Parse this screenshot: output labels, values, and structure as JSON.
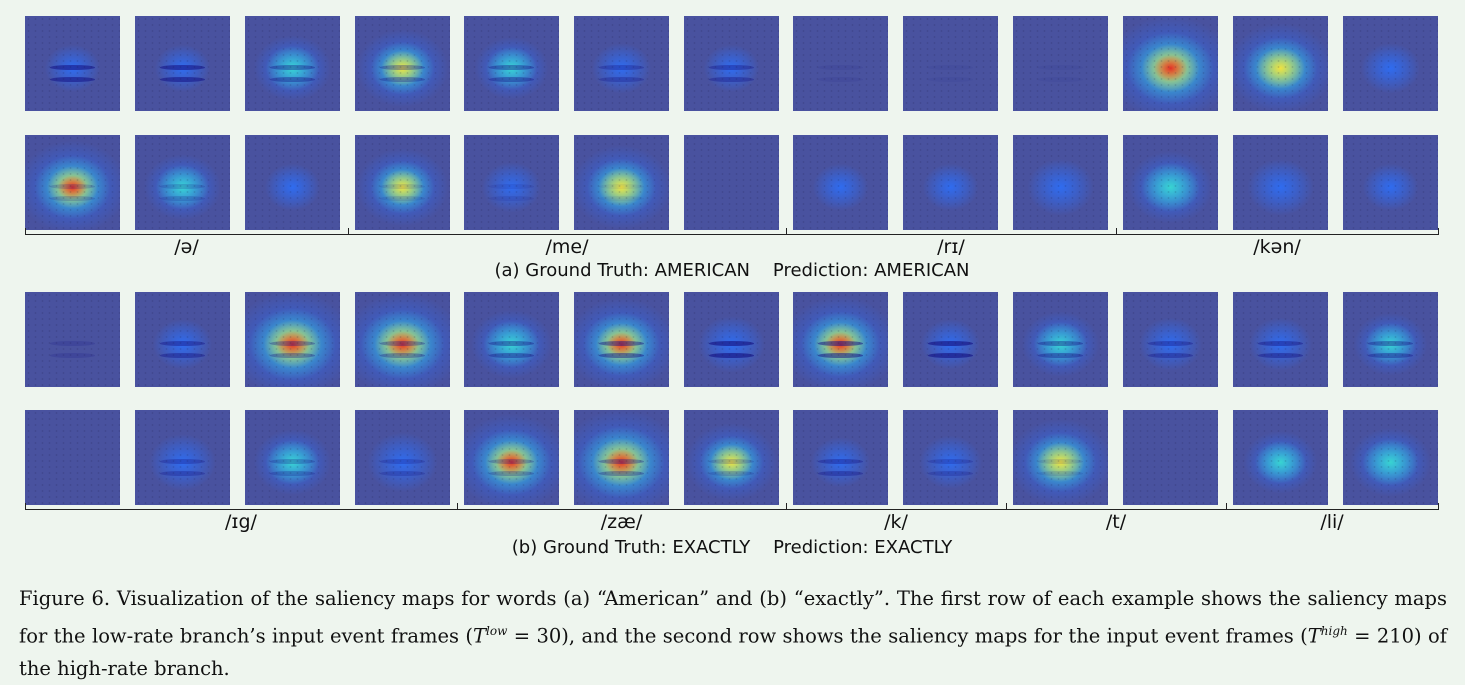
{
  "panels": [
    {
      "id": "a",
      "rows": [
        [
          {
            "heat": 0.05,
            "lip": 0.9
          },
          {
            "heat": 0.05,
            "lip": 0.9
          },
          {
            "heat": 0.35,
            "lip": 0.6
          },
          {
            "heat": 0.55,
            "lip": 0.5
          },
          {
            "heat": 0.3,
            "lip": 0.6
          },
          {
            "heat": 0.1,
            "lip": 0.5
          },
          {
            "heat": 0.05,
            "lip": 0.6
          },
          {
            "heat": 0.0,
            "lip": 0.15
          },
          {
            "heat": 0.0,
            "lip": 0.1
          },
          {
            "heat": 0.0,
            "lip": 0.1
          },
          {
            "heat": 1.0,
            "lip": 0.0
          },
          {
            "heat": 0.75,
            "lip": 0.0
          },
          {
            "heat": 0.1,
            "lip": 0.0
          }
        ],
        [
          {
            "heat": 0.8,
            "lip": 0.3
          },
          {
            "heat": 0.35,
            "lip": 0.3
          },
          {
            "heat": 0.05,
            "lip": 0.0
          },
          {
            "heat": 0.55,
            "lip": 0.2
          },
          {
            "heat": 0.1,
            "lip": 0.2
          },
          {
            "heat": 0.65,
            "lip": 0.1
          },
          {
            "heat": 0.0,
            "lip": 0.0
          },
          {
            "heat": 0.05,
            "lip": 0.0
          },
          {
            "heat": 0.05,
            "lip": 0.0
          },
          {
            "heat": 0.2,
            "lip": 0.0
          },
          {
            "heat": 0.45,
            "lip": 0.0
          },
          {
            "heat": 0.2,
            "lip": 0.0
          },
          {
            "heat": 0.05,
            "lip": 0.0
          }
        ]
      ],
      "segments": [
        {
          "label": "/ə/",
          "from": 0,
          "to": 3
        },
        {
          "label": "/me/",
          "from": 3,
          "to": 7
        },
        {
          "label": "/rɪ/",
          "from": 7,
          "to": 10
        },
        {
          "label": "/kən/",
          "from": 10,
          "to": 13
        }
      ],
      "caption": "(a) Ground Truth: AMERICAN    Prediction: AMERICAN"
    },
    {
      "id": "b",
      "rows": [
        [
          {
            "heat": 0.0,
            "lip": 0.3
          },
          {
            "heat": 0.1,
            "lip": 0.7
          },
          {
            "heat": 1.0,
            "lip": 0.5
          },
          {
            "heat": 0.95,
            "lip": 0.5
          },
          {
            "heat": 0.4,
            "lip": 0.6
          },
          {
            "heat": 0.8,
            "lip": 0.7
          },
          {
            "heat": 0.2,
            "lip": 1.0
          },
          {
            "heat": 0.85,
            "lip": 0.8
          },
          {
            "heat": 0.1,
            "lip": 1.0
          },
          {
            "heat": 0.35,
            "lip": 0.6
          },
          {
            "heat": 0.15,
            "lip": 0.6
          },
          {
            "heat": 0.15,
            "lip": 0.7
          },
          {
            "heat": 0.3,
            "lip": 0.6
          }
        ],
        [
          {
            "heat": 0.0,
            "lip": 0.0
          },
          {
            "heat": 0.2,
            "lip": 0.5
          },
          {
            "heat": 0.35,
            "lip": 0.4
          },
          {
            "heat": 0.25,
            "lip": 0.4
          },
          {
            "heat": 0.85,
            "lip": 0.4
          },
          {
            "heat": 1.0,
            "lip": 0.5
          },
          {
            "heat": 0.55,
            "lip": 0.3
          },
          {
            "heat": 0.1,
            "lip": 0.6
          },
          {
            "heat": 0.15,
            "lip": 0.4
          },
          {
            "heat": 0.7,
            "lip": 0.2
          },
          {
            "heat": 0.0,
            "lip": 0.0
          },
          {
            "heat": 0.3,
            "lip": 0.0
          },
          {
            "heat": 0.4,
            "lip": 0.0
          }
        ]
      ],
      "segments": [
        {
          "label": "/ɪg/",
          "from": 0,
          "to": 4
        },
        {
          "label": "/zæ/",
          "from": 4,
          "to": 7
        },
        {
          "label": "/k/",
          "from": 7,
          "to": 9
        },
        {
          "label": "/t/",
          "from": 9,
          "to": 11
        },
        {
          "label": "/li/",
          "from": 11,
          "to": 13
        }
      ],
      "caption": "(b) Ground Truth: EXACTLY    Prediction: EXACTLY"
    }
  ],
  "figure_caption": {
    "label": "Figure 6.",
    "text_1": "Visualization of the saliency maps for words (a) “American” and (b) “exactly”. The first row of each example shows the saliency maps for the low-rate branch’s input event frames (",
    "t_low_sym": "T",
    "t_low_sup": "low",
    "t_low_val": " = 30), and the second row shows the saliency maps for the input event frames (",
    "t_high_sym": "T",
    "t_high_sup": "high",
    "t_high_val": " = 210) of the high-rate branch."
  },
  "colors": {
    "tile_base": "#49529f",
    "heat_low": "#2f6cf0",
    "heat_mid": "#39d4d0",
    "heat_hot": "#f0e040",
    "heat_peak": "#e0302a",
    "lip": "#1a1a8a"
  }
}
